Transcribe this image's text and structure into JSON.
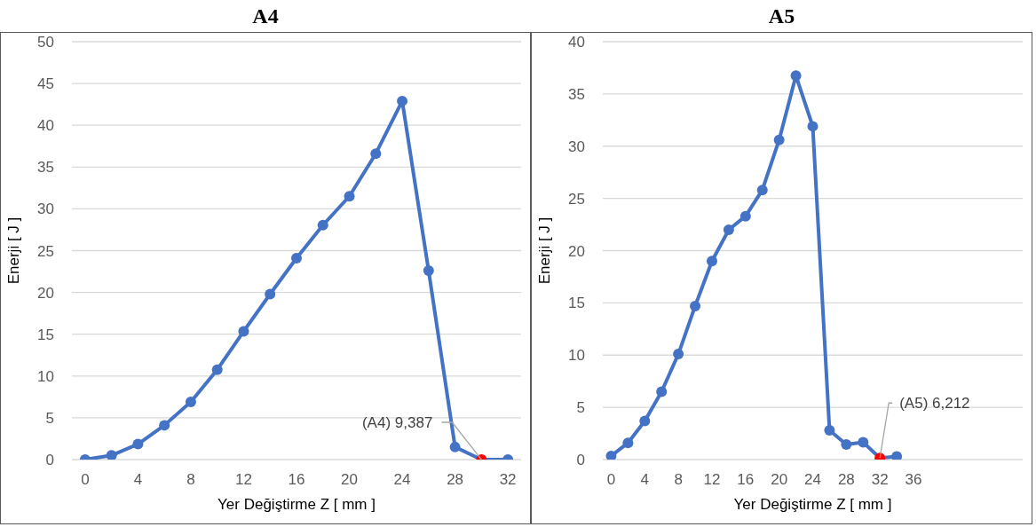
{
  "chart_data": [
    {
      "type": "line",
      "title": "A4",
      "xlabel": "Yer Değiştirme Z [ mm ]",
      "ylabel": "Enerji [ J ]",
      "x": [
        0,
        2,
        4,
        6,
        8,
        10,
        12,
        14,
        16,
        18,
        20,
        22,
        24,
        26,
        28,
        30,
        32
      ],
      "series": [
        {
          "color": "#4472c4",
          "colors": [
            "#4472c4",
            "#4472c4",
            "#4472c4",
            "#4472c4",
            "#4472c4",
            "#4472c4",
            "#4472c4",
            "#4472c4",
            "#4472c4",
            "#4472c4",
            "#4472c4",
            "#4472c4",
            "#4472c4",
            "#4472c4",
            "#4472c4",
            "#ff0000",
            "#4472c4"
          ],
          "values": [
            0,
            0.5,
            1.85,
            4.1,
            6.9,
            10.75,
            15.35,
            19.8,
            24.1,
            28.05,
            31.5,
            36.6,
            42.9,
            22.6,
            1.5,
            0,
            0
          ]
        }
      ],
      "xlim": [
        -1,
        33
      ],
      "xticks": [
        0,
        4,
        8,
        12,
        16,
        20,
        24,
        28,
        32
      ],
      "ylim": [
        0,
        50
      ],
      "yticks": [
        0,
        5,
        10,
        15,
        20,
        25,
        30,
        35,
        40,
        45,
        50
      ],
      "grid": "y",
      "marker": "circle",
      "line_style": "solid",
      "annotations": [
        {
          "text": "(A4) 9,387",
          "x": 30,
          "y": 0
        }
      ]
    },
    {
      "type": "line",
      "title": "A5",
      "xlabel": "Yer Değiştirme Z [ mm ]",
      "ylabel": "Enerji [ J ]",
      "x": [
        0,
        2,
        4,
        6,
        8,
        10,
        12,
        14,
        16,
        18,
        20,
        22,
        24,
        26,
        28,
        30,
        32,
        34
      ],
      "series": [
        {
          "color": "#4472c4",
          "colors": [
            "#4472c4",
            "#4472c4",
            "#4472c4",
            "#4472c4",
            "#4472c4",
            "#4472c4",
            "#4472c4",
            "#4472c4",
            "#4472c4",
            "#4472c4",
            "#4472c4",
            "#4472c4",
            "#4472c4",
            "#4472c4",
            "#4472c4",
            "#4472c4",
            "#ff0000",
            "#4472c4"
          ],
          "values": [
            0.35,
            1.6,
            3.7,
            6.5,
            10.1,
            14.7,
            19.0,
            22.0,
            23.3,
            25.8,
            30.6,
            36.75,
            31.9,
            2.8,
            1.45,
            1.65,
            0.15,
            0.3
          ]
        }
      ],
      "xlim": [
        -1,
        49
      ],
      "xticks": [
        0,
        4,
        8,
        12,
        16,
        20,
        24,
        28,
        32,
        36
      ],
      "ylim": [
        0,
        40
      ],
      "yticks": [
        0,
        5,
        10,
        15,
        20,
        25,
        30,
        35,
        40
      ],
      "grid": "y",
      "marker": "circle",
      "line_style": "solid",
      "annotations": [
        {
          "text": "(A5) 6,212",
          "x": 32,
          "y": 0.15
        }
      ]
    }
  ]
}
